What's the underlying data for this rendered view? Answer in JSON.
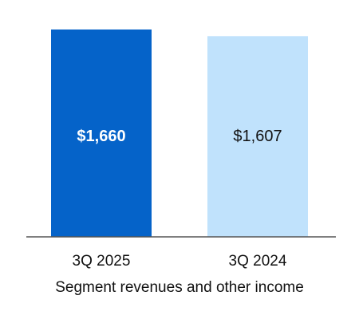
{
  "chart_data": {
    "type": "bar",
    "categories": [
      "3Q 2025",
      "3Q 2024"
    ],
    "values": [
      1660,
      1607
    ],
    "value_labels": [
      "$1,660",
      "$1,607"
    ],
    "xlabel": "Segment revenues and other income",
    "ylabel": "",
    "ylim": [
      0,
      1660
    ],
    "grid": false,
    "legend": "none",
    "colors": [
      "#0563c9",
      "#c0e2fc"
    ],
    "value_label_colors": [
      "#ffffff",
      "#111111"
    ],
    "value_label_bold": [
      true,
      false
    ]
  }
}
